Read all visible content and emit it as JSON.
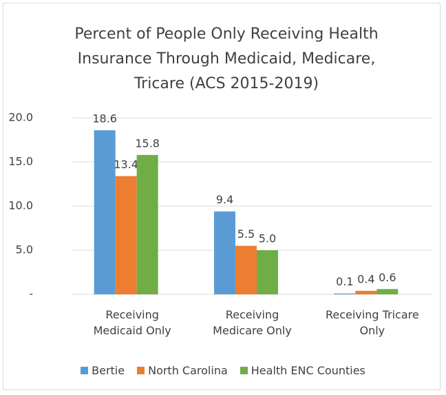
{
  "chart_data": {
    "type": "bar",
    "title": "Percent of People Only Receiving Health Insurance Through Medicaid, Medicare, Tricare (ACS 2015-2019)",
    "categories": [
      "Receiving Medicaid Only",
      "Receiving Medicare Only",
      "Receiving Tricare Only"
    ],
    "series": [
      {
        "name": "Bertie",
        "color": "#5b9bd5",
        "values": [
          18.6,
          9.4,
          0.1
        ],
        "value_labels": [
          "18.6",
          "9.4",
          "0.1"
        ]
      },
      {
        "name": "North Carolina",
        "color": "#ed7d31",
        "values": [
          13.4,
          5.5,
          0.4
        ],
        "value_labels": [
          "13.4",
          "5.5",
          "0.4"
        ]
      },
      {
        "name": "Health ENC Counties",
        "color": "#70ad47",
        "values": [
          15.8,
          5.0,
          0.6
        ],
        "value_labels": [
          "15.8",
          "5.0",
          "0.6"
        ]
      }
    ],
    "ylim": [
      0,
      20
    ],
    "yticks": [
      {
        "value": 0,
        "label": "-"
      },
      {
        "value": 5,
        "label": "5.0"
      },
      {
        "value": 10,
        "label": "10.0"
      },
      {
        "value": 15,
        "label": "15.0"
      },
      {
        "value": 20,
        "label": "20.0"
      }
    ],
    "grid": true,
    "legend": "bottom"
  }
}
